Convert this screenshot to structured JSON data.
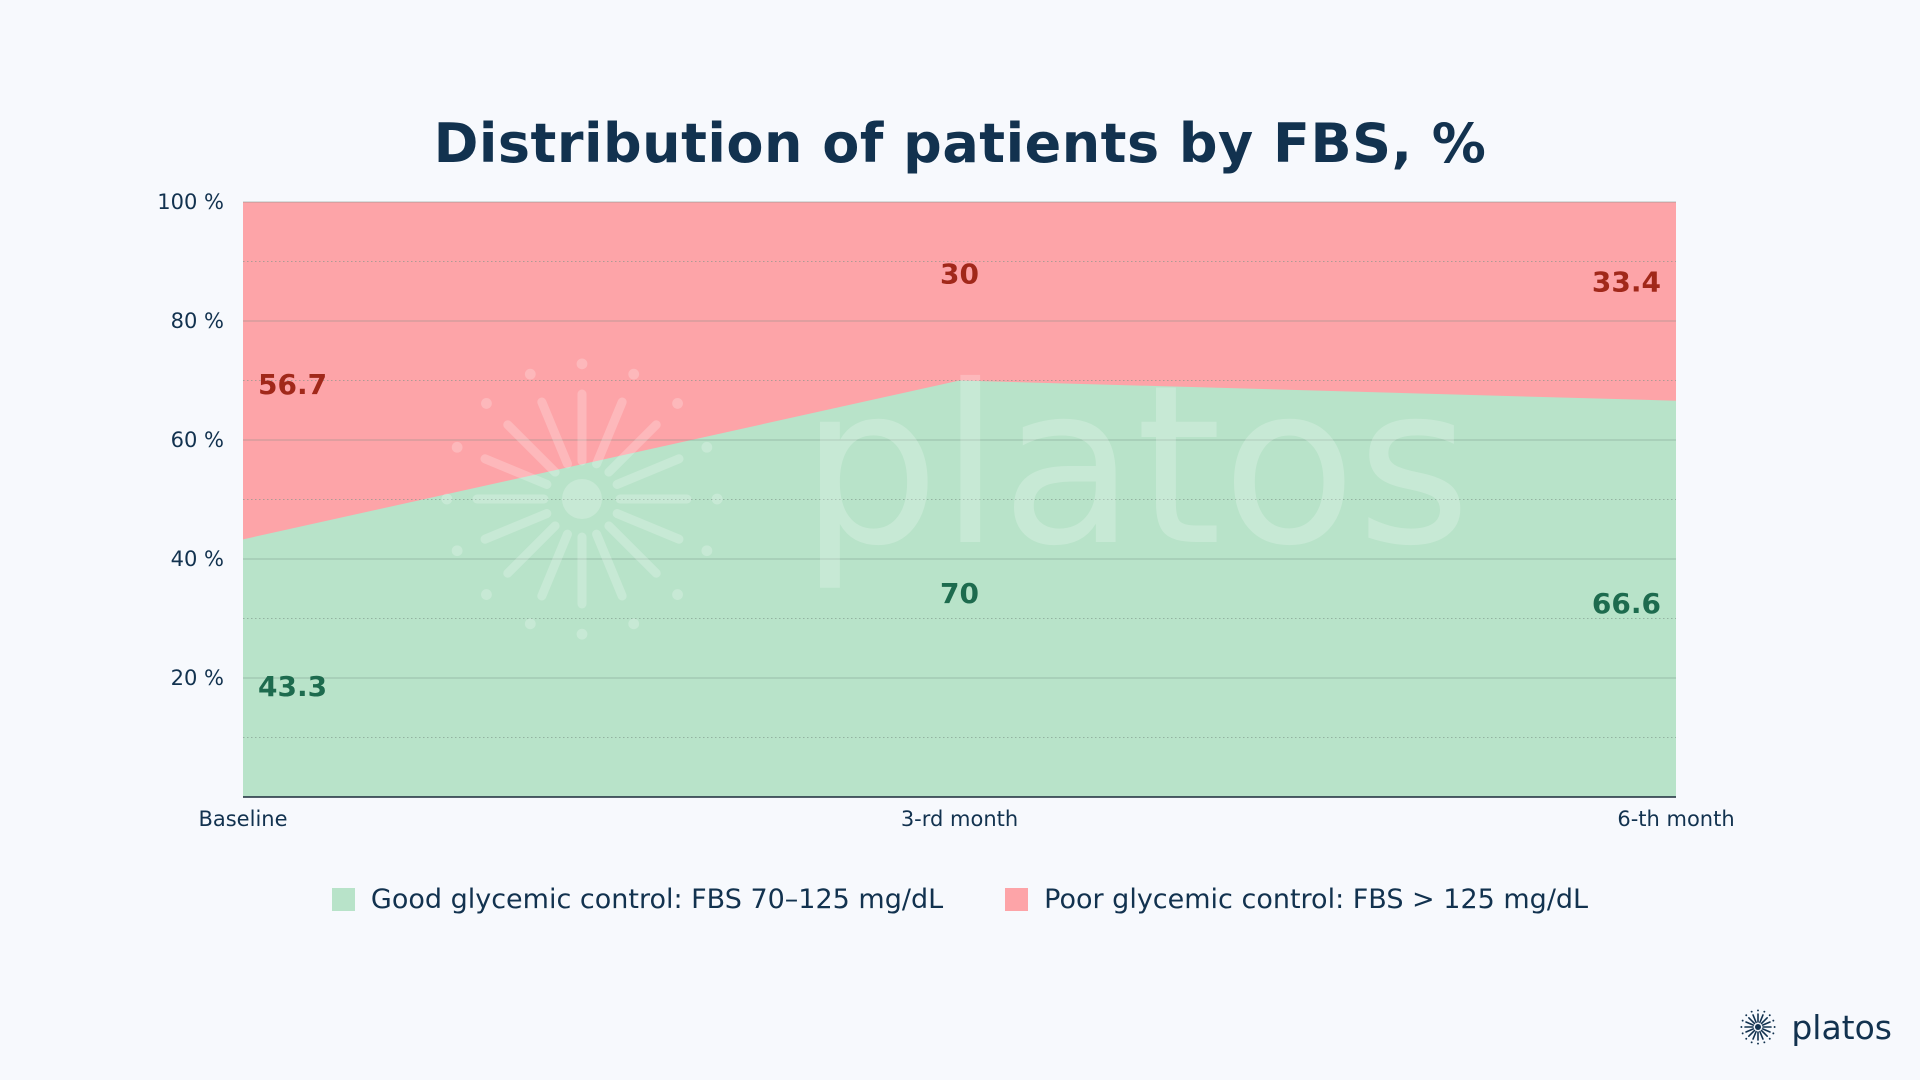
{
  "chart_data": {
    "type": "area",
    "stacked": true,
    "title": "Distribution of patients by FBS, %",
    "categories": [
      "Baseline",
      "3-rd month",
      "6-th month"
    ],
    "series": [
      {
        "name": "Good glycemic control: FBS 70–125 mg/dL",
        "values": [
          43.3,
          70,
          66.6
        ],
        "color": "#b8e3c9",
        "label_color": "#1d6b4e"
      },
      {
        "name": "Poor glycemic control: FBS > 125 mg/dL",
        "values": [
          56.7,
          30,
          33.4
        ],
        "color": "#fda4a8",
        "label_color": "#a1281a"
      }
    ],
    "y_ticks": [
      "20 %",
      "40 %",
      "60 %",
      "80 %",
      "100 %"
    ],
    "ylim": [
      0,
      100
    ],
    "grid": true,
    "legend_position": "bottom"
  },
  "brand": {
    "name": "platos",
    "watermark": "platos"
  }
}
